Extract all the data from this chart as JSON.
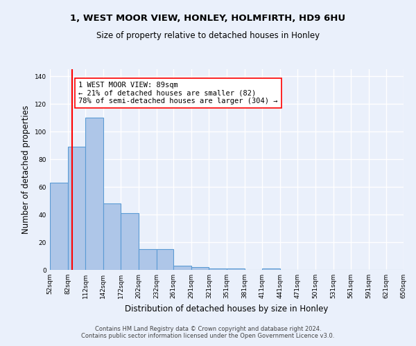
{
  "title1": "1, WEST MOOR VIEW, HONLEY, HOLMFIRTH, HD9 6HU",
  "title2": "Size of property relative to detached houses in Honley",
  "xlabel": "Distribution of detached houses by size in Honley",
  "ylabel": "Number of detached properties",
  "bar_edges": [
    52,
    82,
    112,
    142,
    172,
    202,
    232,
    261,
    291,
    321,
    351,
    381,
    411,
    441,
    471,
    501,
    531,
    561,
    591,
    621,
    650
  ],
  "bar_heights": [
    63,
    89,
    110,
    48,
    41,
    15,
    15,
    3,
    2,
    1,
    1,
    0,
    1,
    0,
    0,
    0,
    0,
    0,
    0,
    0
  ],
  "bar_color": "#aec6e8",
  "bar_edge_color": "#5b9bd5",
  "property_size": 89,
  "property_line_color": "red",
  "annotation_text": "1 WEST MOOR VIEW: 89sqm\n← 21% of detached houses are smaller (82)\n78% of semi-detached houses are larger (304) →",
  "annotation_box_color": "white",
  "annotation_box_edge_color": "red",
  "ylim": [
    0,
    145
  ],
  "yticks": [
    0,
    20,
    40,
    60,
    80,
    100,
    120,
    140
  ],
  "tick_labels": [
    "52sqm",
    "82sqm",
    "112sqm",
    "142sqm",
    "172sqm",
    "202sqm",
    "232sqm",
    "261sqm",
    "291sqm",
    "321sqm",
    "351sqm",
    "381sqm",
    "411sqm",
    "441sqm",
    "471sqm",
    "501sqm",
    "531sqm",
    "561sqm",
    "591sqm",
    "621sqm",
    "650sqm"
  ],
  "footnote": "Contains HM Land Registry data © Crown copyright and database right 2024.\nContains public sector information licensed under the Open Government Licence v3.0.",
  "background_color": "#eaf0fb",
  "grid_color": "#ffffff"
}
